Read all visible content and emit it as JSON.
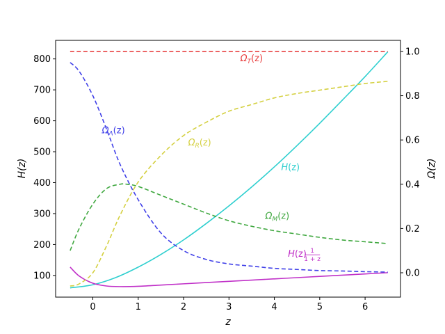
{
  "chart_data": {
    "type": "line",
    "title": "",
    "xlabel": "z",
    "ylabel_left": "H(z)",
    "ylabel_right": "Ω(z)",
    "xlim": [
      -0.82,
      6.78
    ],
    "ylim_left": [
      30,
      860
    ],
    "ylim_right": [
      -0.11,
      1.05
    ],
    "grid": false,
    "legend": "none",
    "x_ticks": [
      0,
      1,
      2,
      3,
      4,
      5,
      6
    ],
    "y_left_ticks": [
      100,
      200,
      300,
      400,
      500,
      600,
      700,
      800
    ],
    "y_right_ticks": [
      0.0,
      0.2,
      0.4,
      0.6,
      0.8,
      1.0
    ],
    "series": [
      {
        "name": "H(z)",
        "label_main": "H",
        "label_sub": "",
        "label_arg": "(z)",
        "axis": "left",
        "color": "#2ecfcf",
        "style": "solid",
        "x": [
          -0.5,
          0,
          0.5,
          1,
          1.5,
          2,
          2.5,
          3,
          3.5,
          4,
          4.5,
          5,
          5.5,
          6,
          6.5
        ],
        "y": [
          60,
          70,
          93,
          127,
          168,
          215,
          268,
          325,
          386,
          451,
          520,
          592,
          667,
          743,
          823
        ]
      },
      {
        "name": "H(z)·1/(1+z)",
        "label_main": "H",
        "label_sub": "",
        "label_arg": "(z)",
        "axis": "left",
        "color": "#c030c8",
        "style": "solid",
        "x": [
          -0.5,
          -0.3,
          0,
          0.3,
          0.6,
          1,
          1.5,
          2,
          2.5,
          3,
          3.5,
          4,
          4.5,
          5,
          5.5,
          6,
          6.5
        ],
        "y": [
          127,
          98,
          75,
          66,
          64,
          65,
          69,
          73,
          77,
          81,
          85,
          89,
          93,
          97,
          101,
          105,
          109
        ]
      },
      {
        "name": "Ω_T(z)",
        "label_main": "Ω",
        "label_sub": "T",
        "label_arg": "(z)",
        "axis": "right",
        "color": "#e84040",
        "style": "dashed",
        "x": [
          -0.5,
          6.5
        ],
        "y": [
          1.0,
          1.0
        ]
      },
      {
        "name": "Ω_Λ(z)",
        "label_main": "Ω",
        "label_sub": "Λ",
        "label_arg": "(z)",
        "axis": "right",
        "color": "#4040e8",
        "style": "dashed",
        "x": [
          -0.5,
          -0.3,
          0,
          0.3,
          0.6,
          1,
          1.5,
          2,
          2.5,
          3,
          3.5,
          4,
          4.5,
          5,
          5.5,
          6,
          6.5
        ],
        "y": [
          0.95,
          0.91,
          0.8,
          0.65,
          0.49,
          0.33,
          0.18,
          0.1,
          0.06,
          0.04,
          0.03,
          0.02,
          0.015,
          0.01,
          0.008,
          0.005,
          0.003
        ]
      },
      {
        "name": "Ω_R(z)",
        "label_main": "Ω",
        "label_sub": "R",
        "label_arg": "(z)",
        "axis": "right",
        "color": "#d4d040",
        "style": "dashed",
        "x": [
          -0.5,
          -0.3,
          0,
          0.3,
          0.6,
          1,
          1.5,
          2,
          2.5,
          3,
          3.5,
          4,
          4.5,
          5,
          5.5,
          6,
          6.5
        ],
        "y": [
          -0.06,
          -0.05,
          0.0,
          0.12,
          0.26,
          0.41,
          0.53,
          0.62,
          0.68,
          0.73,
          0.76,
          0.79,
          0.81,
          0.825,
          0.84,
          0.855,
          0.865
        ]
      },
      {
        "name": "Ω_M(z)",
        "label_main": "Ω",
        "label_sub": "M",
        "label_arg": "(z)",
        "axis": "right",
        "color": "#40a840",
        "style": "dashed",
        "x": [
          -0.5,
          -0.3,
          0,
          0.3,
          0.6,
          0.75,
          1,
          1.5,
          2,
          2.5,
          3,
          3.5,
          4,
          4.5,
          5,
          5.5,
          6,
          6.5
        ],
        "y": [
          0.1,
          0.2,
          0.31,
          0.38,
          0.4,
          0.4,
          0.39,
          0.35,
          0.31,
          0.27,
          0.235,
          0.21,
          0.19,
          0.175,
          0.16,
          0.148,
          0.14,
          0.132
        ]
      }
    ],
    "annotations": [
      {
        "series": 2,
        "text_main": "Ω",
        "text_sub": "T",
        "text_arg": "(z)",
        "x": 3.25,
        "y": 0.955,
        "axis": "right",
        "color": "#e84040"
      },
      {
        "series": 3,
        "text_main": "Ω",
        "text_sub": "Λ",
        "text_arg": "(z)",
        "x": 0.2,
        "y": 0.63,
        "axis": "right",
        "color": "#4040e8"
      },
      {
        "series": 4,
        "text_main": "Ω",
        "text_sub": "R",
        "text_arg": "(z)",
        "x": 2.1,
        "y": 0.575,
        "axis": "right",
        "color": "#d4d040"
      },
      {
        "series": 0,
        "text_main": "H",
        "text_sub": "",
        "text_arg": "(z)",
        "x": 4.15,
        "y": 440,
        "axis": "left",
        "color": "#2ecfcf"
      },
      {
        "series": 5,
        "text_main": "Ω",
        "text_sub": "M",
        "text_arg": "(z)",
        "x": 3.8,
        "y": 0.243,
        "axis": "right",
        "color": "#40a840"
      },
      {
        "series": 1,
        "text_main": "H",
        "text_sub": "",
        "text_arg": "(z)",
        "fraction_num": "1",
        "fraction_den": "1 + z",
        "x": 4.3,
        "y": 160,
        "axis": "left",
        "color": "#c030c8"
      }
    ]
  }
}
